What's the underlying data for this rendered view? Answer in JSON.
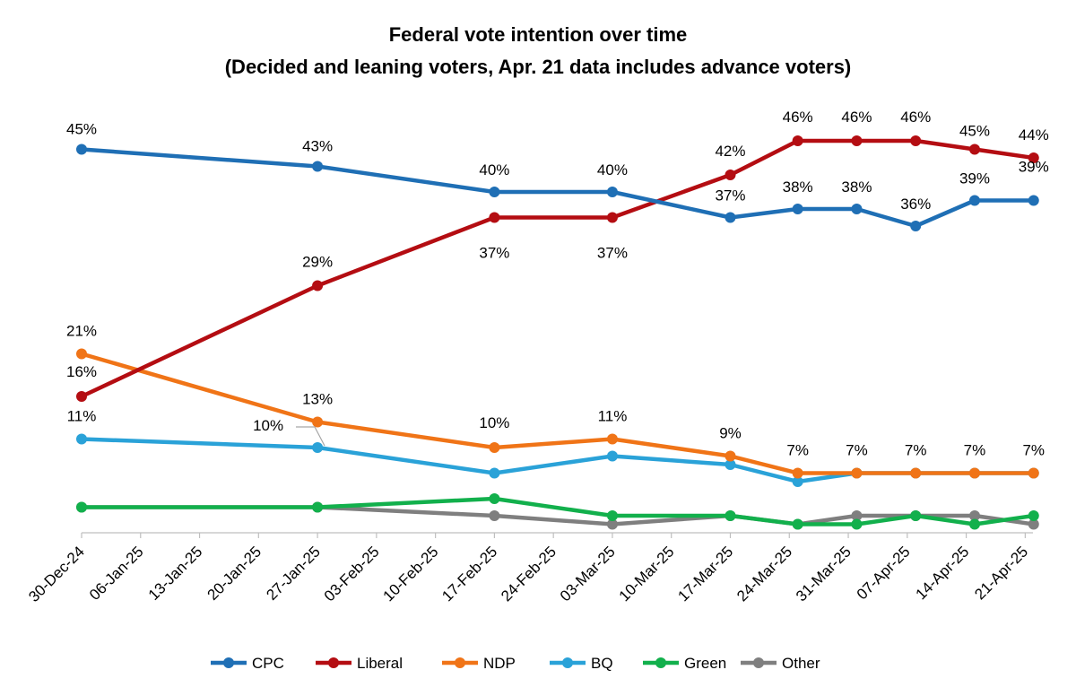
{
  "chart_data": {
    "type": "line",
    "title": "Federal vote intention over time",
    "subtitle": "(Decided and leaning voters, Apr. 21 data includes advance voters)",
    "xlabel": "",
    "ylabel": "",
    "ylim": [
      0,
      50
    ],
    "grid": false,
    "legend_position": "bottom",
    "x_ticks": [
      "30-Dec-24",
      "06-Jan-25",
      "13-Jan-25",
      "20-Jan-25",
      "27-Jan-25",
      "03-Feb-25",
      "10-Feb-25",
      "17-Feb-25",
      "24-Feb-25",
      "03-Mar-25",
      "10-Mar-25",
      "17-Mar-25",
      "24-Mar-25",
      "31-Mar-25",
      "07-Apr-25",
      "14-Apr-25",
      "21-Apr-25"
    ],
    "x_days": [
      0,
      28,
      49,
      63,
      77,
      85,
      92,
      99,
      106,
      113
    ],
    "series": [
      {
        "name": "CPC",
        "color": "#1F6FB5",
        "values": [
          45,
          43,
          40,
          40,
          37,
          38,
          38,
          36,
          39,
          39
        ],
        "labels": [
          "45%",
          "43%",
          "40%",
          "40%",
          "37%",
          "38%",
          "38%",
          "36%",
          "39%",
          "39%"
        ]
      },
      {
        "name": "Liberal",
        "color": "#B40D12",
        "values": [
          16,
          29,
          37,
          37,
          42,
          46,
          46,
          46,
          45,
          44
        ],
        "labels": [
          "16%",
          "29%",
          "37%",
          "37%",
          "42%",
          "46%",
          "46%",
          "46%",
          "45%",
          "44%"
        ]
      },
      {
        "name": "NDP",
        "color": "#F07417",
        "values": [
          21,
          13,
          10,
          11,
          9,
          7,
          7,
          7,
          7,
          7
        ],
        "labels": [
          "21%",
          "13%",
          "10%",
          "11%",
          "9%",
          "7%",
          "7%",
          "7%",
          "7%",
          "7%"
        ]
      },
      {
        "name": "BQ",
        "color": "#2AA2D8",
        "values": [
          11,
          10,
          7,
          9,
          8,
          6,
          7,
          7,
          7,
          7
        ],
        "labels": [
          "11%",
          "10%",
          "",
          "",
          "",
          "",
          "",
          "",
          "",
          ""
        ]
      },
      {
        "name": "Green",
        "color": "#12B04C",
        "values": [
          3,
          3,
          4,
          2,
          2,
          1,
          1,
          2,
          1,
          2
        ],
        "labels": []
      },
      {
        "name": "Other",
        "color": "#7F7F7F",
        "values": [
          3,
          3,
          2,
          1,
          2,
          1,
          2,
          2,
          2,
          1
        ],
        "labels": []
      }
    ]
  }
}
